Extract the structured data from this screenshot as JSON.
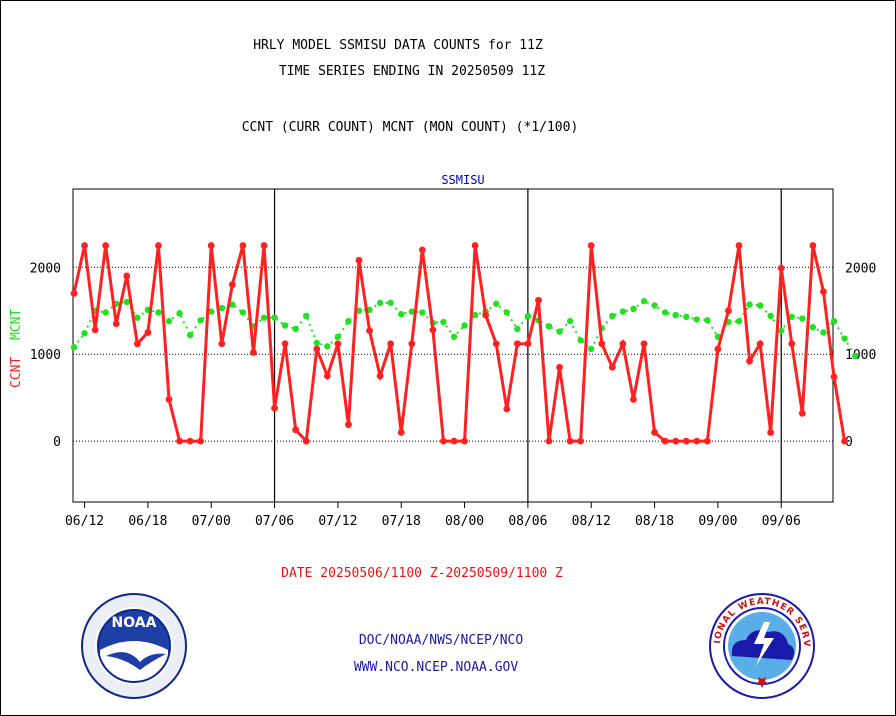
{
  "header": {
    "title_line1": "HRLY MODEL SSMISU DATA COUNTS for 11Z",
    "title_line2": "TIME SERIES ENDING IN 20250509 11Z",
    "subtitle": "CCNT (CURR COUNT) MCNT (MON COUNT) (*1/100)"
  },
  "footer": {
    "date_range": "DATE 20250506/1100 Z-20250509/1100 Z",
    "org_path": "DOC/NOAA/NWS/NCEP/NCO",
    "website": "WWW.NCO.NCEP.NOAA.GOV"
  },
  "logos": {
    "noaa_text": "NOAA",
    "nws_text": "NATIONAL WEATHER SERVICE"
  },
  "colors": {
    "ccnt": "#ff2020",
    "mcnt": "#22e022",
    "panel_label": "#0000cc",
    "footer_text": "#1a1aaa",
    "date_text": "#ee1111"
  },
  "chart_data": {
    "type": "line",
    "panel_label": "SSMISU",
    "ylabel_ccnt": "CCNT",
    "ylabel_mcnt": "MCNT",
    "ylim": [
      -700,
      2900
    ],
    "y_ticks": [
      0,
      1000,
      2000
    ],
    "y_tick_labels": [
      "0",
      "1000",
      "2000"
    ],
    "grid": true,
    "x_tick_labels": [
      "06/12",
      "06/18",
      "07/00",
      "07/06",
      "07/12",
      "07/18",
      "08/00",
      "08/06",
      "08/12",
      "08/18",
      "09/00",
      "09/06"
    ],
    "x_tick_hours": [
      1,
      7,
      13,
      19,
      25,
      31,
      37,
      43,
      49,
      55,
      61,
      67
    ],
    "day_boundary_hours": [
      19,
      43,
      67
    ],
    "x_range": [
      0,
      72
    ],
    "series": [
      {
        "name": "CCNT",
        "values": [
          1700,
          2250,
          1280,
          2250,
          1350,
          1900,
          1120,
          1250,
          2250,
          480,
          0,
          0,
          0,
          2250,
          1120,
          1800,
          2250,
          1020,
          2250,
          380,
          1120,
          130,
          0,
          1060,
          750,
          1120,
          190,
          2080,
          1270,
          750,
          1120,
          100,
          1120,
          2200,
          1280,
          0,
          0,
          0,
          2250,
          1450,
          1120,
          370,
          1120,
          1120,
          1620,
          0,
          850,
          0,
          0,
          2250,
          1120,
          850,
          1120,
          480,
          1120,
          100,
          0,
          0,
          0,
          0,
          0,
          1060,
          1500,
          2250,
          920,
          1120,
          100,
          1990,
          1120,
          320,
          2250,
          1720,
          740,
          0
        ]
      },
      {
        "name": "MCNT",
        "values": [
          1080,
          1240,
          1500,
          1480,
          1580,
          1600,
          1420,
          1510,
          1480,
          1380,
          1470,
          1220,
          1390,
          1490,
          1530,
          1570,
          1480,
          1320,
          1420,
          1420,
          1330,
          1290,
          1440,
          1130,
          1090,
          1200,
          1380,
          1500,
          1510,
          1590,
          1590,
          1460,
          1490,
          1480,
          1360,
          1370,
          1200,
          1330,
          1450,
          1490,
          1580,
          1480,
          1290,
          1440,
          1390,
          1320,
          1260,
          1380,
          1160,
          1060,
          1300,
          1440,
          1490,
          1520,
          1610,
          1560,
          1480,
          1450,
          1430,
          1400,
          1390,
          1200,
          1370,
          1380,
          1570,
          1560,
          1440,
          1270,
          1430,
          1410,
          1310,
          1250,
          1380,
          1180,
          980
        ]
      }
    ]
  }
}
